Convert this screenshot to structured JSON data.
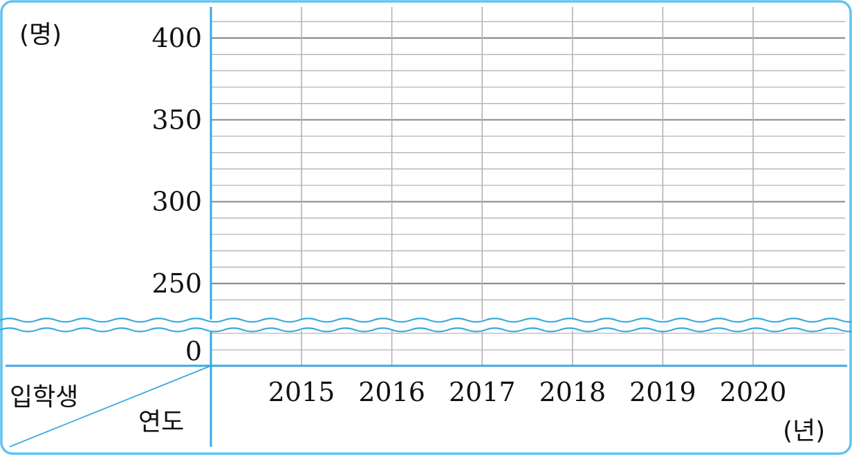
{
  "chart_data": {
    "type": "line",
    "title": "",
    "y_unit_label": "(명)",
    "x_unit_label": "(년)",
    "corner_header_top": "입학생",
    "corner_header_bottom": "연도",
    "categories": [
      "2015",
      "2016",
      "2017",
      "2018",
      "2019",
      "2020"
    ],
    "y_tick_labels": [
      "400",
      "350",
      "300",
      "250",
      "0"
    ],
    "y_major_ticks": [
      250,
      300,
      350,
      400
    ],
    "y_minor_step": 10,
    "ylim": [
      240,
      410
    ],
    "axis_break": true,
    "grid": true,
    "series": []
  },
  "colors": {
    "frame": "#5ec4ee",
    "axis": "#3aa8e0",
    "grid_major": "#8d8d8d",
    "grid_minor": "#b3b3b3",
    "text": "#111111"
  }
}
